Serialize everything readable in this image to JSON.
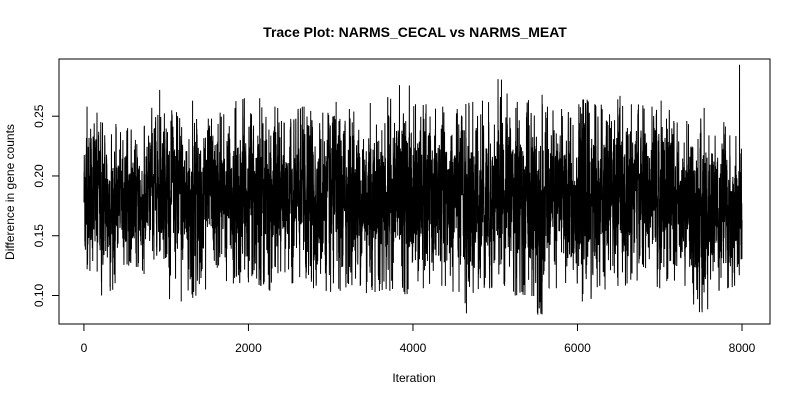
{
  "chart_data": {
    "type": "line",
    "title": "Trace Plot: NARMS_CECAL vs NARMS_MEAT",
    "xlabel": "Iteration",
    "ylabel": "Difference in gene counts",
    "xlim": [
      1,
      8000
    ],
    "ylim": [
      0.082,
      0.292
    ],
    "x_ticks": [
      0,
      2000,
      4000,
      6000,
      8000
    ],
    "y_ticks": [
      0.1,
      0.15,
      0.2,
      0.25
    ],
    "x_tick_labels": [
      "0",
      "2000",
      "4000",
      "6000",
      "8000"
    ],
    "y_tick_labels": [
      "0.10",
      "0.15",
      "0.20",
      "0.25"
    ],
    "grid": false,
    "series": [
      {
        "color": "#000000",
        "n_iterations": 8000,
        "mean": 0.18,
        "sd": 0.022,
        "summary_by_block": {
          "block_size": 200,
          "starts": [
            1,
            201,
            401,
            601,
            801,
            1001,
            1201,
            1401,
            1601,
            1801,
            2001,
            2201,
            2401,
            2601,
            2801,
            3001,
            3201,
            3401,
            3601,
            3801,
            4001,
            4201,
            4401,
            4601,
            4801,
            5001,
            5201,
            5401,
            5601,
            5801,
            6001,
            6201,
            6401,
            6601,
            6801,
            7001,
            7201,
            7401,
            7601,
            7801
          ],
          "median": [
            0.185,
            0.178,
            0.182,
            0.176,
            0.193,
            0.184,
            0.178,
            0.181,
            0.18,
            0.182,
            0.185,
            0.179,
            0.181,
            0.183,
            0.18,
            0.178,
            0.182,
            0.18,
            0.183,
            0.184,
            0.181,
            0.18,
            0.183,
            0.178,
            0.182,
            0.186,
            0.181,
            0.177,
            0.18,
            0.183,
            0.181,
            0.182,
            0.184,
            0.186,
            0.181,
            0.18,
            0.178,
            0.165,
            0.176,
            0.17
          ],
          "min": [
            0.12,
            0.1,
            0.125,
            0.118,
            0.13,
            0.095,
            0.098,
            0.105,
            0.112,
            0.11,
            0.108,
            0.104,
            0.11,
            0.106,
            0.103,
            0.104,
            0.108,
            0.102,
            0.104,
            0.101,
            0.106,
            0.108,
            0.103,
            0.085,
            0.106,
            0.108,
            0.1,
            0.084,
            0.106,
            0.11,
            0.095,
            0.105,
            0.108,
            0.11,
            0.106,
            0.112,
            0.108,
            0.086,
            0.104,
            0.106
          ],
          "max": [
            0.258,
            0.245,
            0.24,
            0.242,
            0.272,
            0.255,
            0.263,
            0.248,
            0.253,
            0.265,
            0.265,
            0.258,
            0.248,
            0.258,
            0.253,
            0.262,
            0.256,
            0.261,
            0.266,
            0.276,
            0.26,
            0.258,
            0.256,
            0.262,
            0.263,
            0.281,
            0.262,
            0.268,
            0.258,
            0.256,
            0.264,
            0.26,
            0.267,
            0.26,
            0.258,
            0.263,
            0.246,
            0.257,
            0.245,
            0.293
          ]
        }
      }
    ]
  }
}
